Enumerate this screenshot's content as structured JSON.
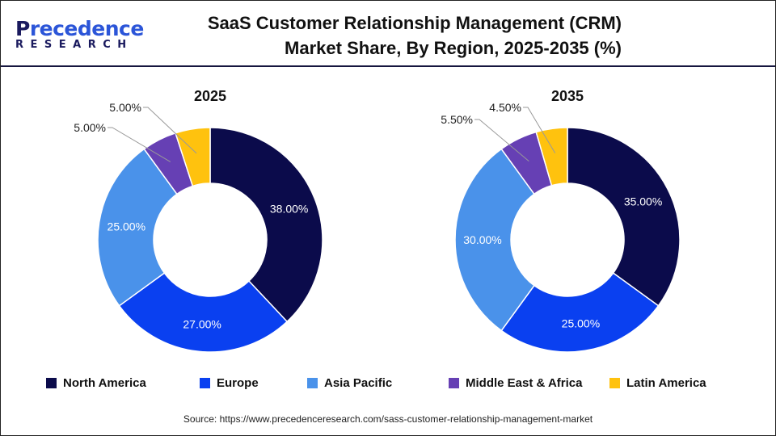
{
  "logo": {
    "text": "Precedence",
    "sub": "RESEARCH"
  },
  "title": "SaaS Customer Relationship Management (CRM) Market Share, By Region, 2025-2035 (%)",
  "source": "Source: https://www.precedenceresearch.com/sass-customer-relationship-management-market",
  "chart_data": [
    {
      "type": "donut",
      "title": "2025",
      "categories": [
        "North America",
        "Europe",
        "Asia Pacific",
        "Middle East & Africa",
        "Latin America"
      ],
      "values": [
        38,
        27,
        25,
        5,
        5
      ],
      "labels": [
        "38.00%",
        "27.00%",
        "25.00%",
        "5.00%",
        "5.00%"
      ]
    },
    {
      "type": "donut",
      "title": "2035",
      "categories": [
        "North America",
        "Europe",
        "Asia Pacific",
        "Middle East & Africa",
        "Latin America"
      ],
      "values": [
        35,
        25,
        30,
        5.5,
        4.5
      ],
      "labels": [
        "35.00%",
        "25.00%",
        "30.00%",
        "5.50%",
        "4.50%"
      ]
    }
  ],
  "legend": [
    {
      "name": "North America",
      "color": "#0b0b4b"
    },
    {
      "name": "Europe",
      "color": "#0a40f0"
    },
    {
      "name": "Asia Pacific",
      "color": "#4a92ea"
    },
    {
      "name": "Middle East & Africa",
      "color": "#6640b4"
    },
    {
      "name": "Latin America",
      "color": "#ffc20e"
    }
  ]
}
